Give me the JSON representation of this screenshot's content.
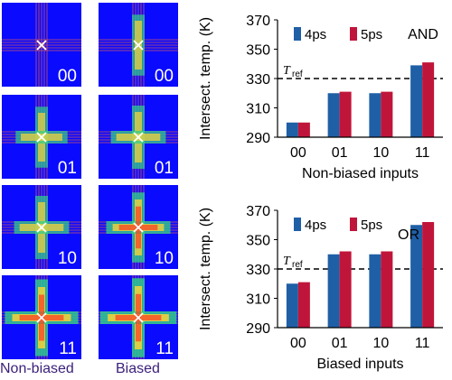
{
  "panels": {
    "rows": [
      {
        "label": "00",
        "left_intensity": 0.08,
        "right_intensity": 0.55,
        "right_shape": "vertical"
      },
      {
        "label": "01",
        "left_intensity": 0.55,
        "right_intensity": 0.6,
        "right_shape": "cross"
      },
      {
        "label": "10",
        "left_intensity": 0.6,
        "right_intensity": 0.75,
        "right_shape": "cross"
      },
      {
        "label": "11",
        "left_intensity": 0.9,
        "right_intensity": 0.95,
        "right_shape": "cross"
      }
    ],
    "col_labels": [
      "Non-biased",
      "Biased"
    ]
  },
  "chart_data": [
    {
      "type": "bar",
      "categories": [
        "00",
        "01",
        "10",
        "11"
      ],
      "series": [
        {
          "name": "4ps",
          "values": [
            300,
            320,
            320,
            339
          ],
          "color": "#1f5fa6"
        },
        {
          "name": "5ps",
          "values": [
            300,
            321,
            321,
            341
          ],
          "color": "#c0153a"
        }
      ],
      "gate_label": "AND",
      "ylabel": "Intersect. temp. (K)",
      "xlabel": "Non-biased inputs",
      "ylim": [
        290,
        370
      ],
      "yticks": [
        290,
        310,
        330,
        350,
        370
      ],
      "ref_value": 330,
      "ref_label": "T",
      "ref_sub": "ref"
    },
    {
      "type": "bar",
      "categories": [
        "00",
        "01",
        "10",
        "11"
      ],
      "series": [
        {
          "name": "4ps",
          "values": [
            320,
            340,
            340,
            360
          ],
          "color": "#1f5fa6"
        },
        {
          "name": "5ps",
          "values": [
            321,
            342,
            342,
            362
          ],
          "color": "#c0153a"
        }
      ],
      "gate_label": "OR",
      "ylabel": "Intersect. temp. (K)",
      "xlabel": "Biased inputs",
      "ylim": [
        290,
        370
      ],
      "yticks": [
        290,
        310,
        330,
        350,
        370
      ],
      "ref_value": 330,
      "ref_label": "T",
      "ref_sub": "ref"
    }
  ]
}
